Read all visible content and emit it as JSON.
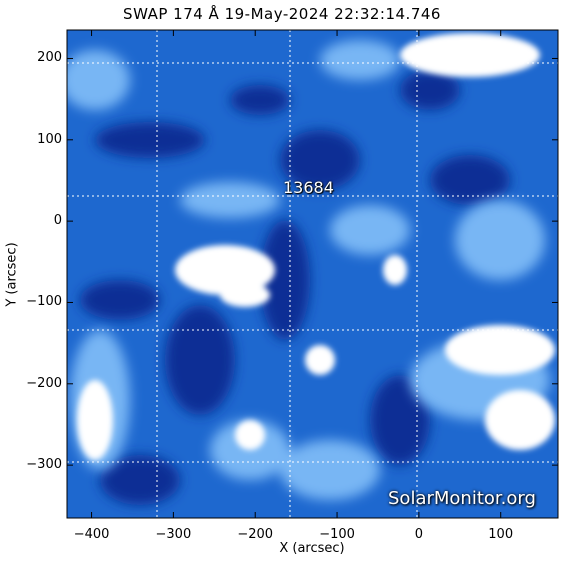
{
  "title": "SWAP 174 Å 19-May-2024 22:32:14.746",
  "region": {
    "number": "13684",
    "x_arcsec": -160,
    "y_arcsec": 35
  },
  "watermark": "SolarMonitor.org",
  "axes": {
    "xlabel": "X (arcsec)",
    "ylabel": "Y (arcsec)",
    "xlim": [
      -430,
      170
    ],
    "ylim": [
      -365,
      235
    ],
    "x_ticks": [
      -400,
      -300,
      -200,
      -100,
      0,
      100
    ],
    "y_ticks": [
      200,
      100,
      0,
      -100,
      -200,
      -300
    ],
    "x_tick_labels": [
      "−400",
      "−300",
      "−200",
      "−100",
      "0",
      "100"
    ],
    "y_tick_labels": [
      "200",
      "100",
      "0",
      "−100",
      "−200",
      "−300"
    ]
  },
  "colors": {
    "dark": "#0a2a8c",
    "mid": "#1f6fd6",
    "light": "#bfe0ff",
    "bright": "#ffffff"
  }
}
